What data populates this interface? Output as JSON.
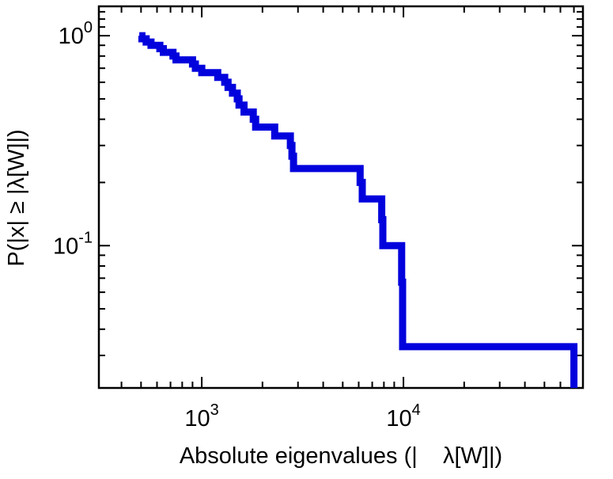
{
  "chart_data": {
    "type": "line",
    "subtype": "empirical-ccdf-step",
    "title": "",
    "xlabel": "Absolute eigenvalues (|    λ[W]|)",
    "ylabel": "P(|x| ≥ |λ[W]|)",
    "xscale": "log",
    "yscale": "log",
    "xlim": [
      309,
      77600
    ],
    "ylim": [
      0.021,
      1.38
    ],
    "grid": false,
    "legend": "none",
    "line_color": "#0202dd",
    "line_width": 9,
    "frame_color": "#000000",
    "background_color": "#ffffff",
    "x_ticks": [
      {
        "value": 1000,
        "label_base": "10",
        "label_exp": "3"
      },
      {
        "value": 10000,
        "label_base": "10",
        "label_exp": "4"
      }
    ],
    "y_ticks": [
      {
        "value": 1,
        "label_base": "10",
        "label_exp": "0"
      },
      {
        "value": 0.1,
        "label_base": "10",
        "label_exp": "-1"
      }
    ],
    "x_minor_ticks": [
      400,
      500,
      600,
      700,
      800,
      900,
      2000,
      3000,
      4000,
      5000,
      6000,
      7000,
      8000,
      9000,
      20000,
      30000,
      40000,
      50000,
      60000,
      70000
    ],
    "y_minor_ticks": [
      1.3,
      1.2,
      1.1,
      0.9,
      0.8,
      0.7,
      0.6,
      0.5,
      0.4,
      0.3,
      0.2,
      0.09,
      0.08,
      0.07,
      0.06,
      0.05,
      0.04,
      0.03
    ],
    "series": [
      {
        "name": "P(|x| >= |lambda[W]|)",
        "steps": [
          {
            "x": 490,
            "p": 1.0
          },
          {
            "x": 505,
            "p": 0.967
          },
          {
            "x": 530,
            "p": 0.933
          },
          {
            "x": 560,
            "p": 0.9
          },
          {
            "x": 620,
            "p": 0.867
          },
          {
            "x": 645,
            "p": 0.833
          },
          {
            "x": 720,
            "p": 0.8
          },
          {
            "x": 745,
            "p": 0.767
          },
          {
            "x": 900,
            "p": 0.733
          },
          {
            "x": 930,
            "p": 0.7
          },
          {
            "x": 1000,
            "p": 0.667
          },
          {
            "x": 1200,
            "p": 0.633
          },
          {
            "x": 1300,
            "p": 0.6
          },
          {
            "x": 1350,
            "p": 0.567
          },
          {
            "x": 1420,
            "p": 0.533
          },
          {
            "x": 1500,
            "p": 0.5
          },
          {
            "x": 1530,
            "p": 0.467
          },
          {
            "x": 1620,
            "p": 0.433
          },
          {
            "x": 1800,
            "p": 0.4
          },
          {
            "x": 1850,
            "p": 0.367
          },
          {
            "x": 2300,
            "p": 0.333
          },
          {
            "x": 2750,
            "p": 0.3
          },
          {
            "x": 2800,
            "p": 0.267
          },
          {
            "x": 2850,
            "p": 0.233
          },
          {
            "x": 6100,
            "p": 0.2
          },
          {
            "x": 6250,
            "p": 0.167
          },
          {
            "x": 7800,
            "p": 0.133
          },
          {
            "x": 7900,
            "p": 0.1
          },
          {
            "x": 9800,
            "p": 0.067
          },
          {
            "x": 9900,
            "p": 0.033
          },
          {
            "x": 70000,
            "p": 0.021
          }
        ]
      }
    ]
  }
}
